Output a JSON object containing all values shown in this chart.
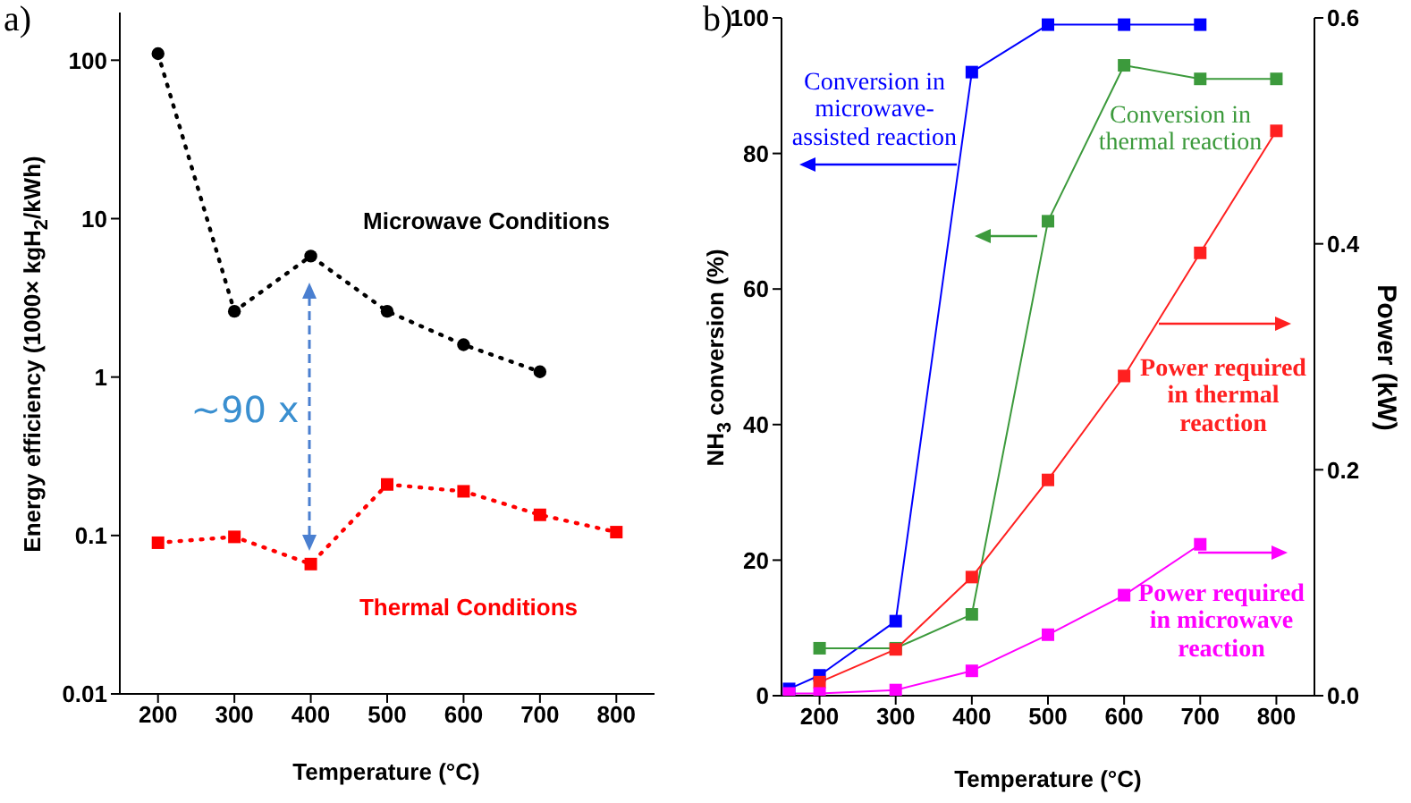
{
  "chart_data": [
    {
      "type": "line",
      "title": "a)",
      "xlabel": "Temperature (°C)",
      "ylabel": "Energy efficiency (1000× kgH$_{2}$/kWh)",
      "log": "y",
      "xlim": [
        150,
        850
      ],
      "xticks": [
        200,
        300,
        400,
        500,
        600,
        700,
        800
      ],
      "ylim": [
        0.01,
        200
      ],
      "yticks": [
        0.01,
        0.1,
        1,
        10,
        100
      ],
      "line_style": "dotted",
      "annotations": [
        "~90 x"
      ],
      "series": [
        {
          "name": "Microwave Conditions",
          "color": "#000000",
          "marker": "circle",
          "x": [
            200,
            300,
            400,
            500,
            600,
            700
          ],
          "values": [
            110,
            2.6,
            5.8,
            2.6,
            1.6,
            1.08
          ]
        },
        {
          "name": "Thermal Conditions",
          "color": "#ff0000",
          "marker": "square",
          "x": [
            200,
            300,
            400,
            500,
            600,
            700,
            800
          ],
          "values": [
            0.09,
            0.098,
            0.066,
            0.21,
            0.19,
            0.135,
            0.105
          ]
        }
      ]
    },
    {
      "type": "line",
      "title": "b)",
      "xlabel": "Temperature (°C)",
      "ylabel": "NH$_{3}$ conversion (%)",
      "y2label": "Power (kW)",
      "xlim": [
        150,
        850
      ],
      "xticks": [
        200,
        300,
        400,
        500,
        600,
        700,
        800
      ],
      "ylim": [
        0,
        100
      ],
      "yticks": [
        0,
        20,
        40,
        60,
        80,
        100
      ],
      "y2lim": [
        0,
        0.6
      ],
      "y2ticks": [
        {
          "value": 0,
          "label": "0.0"
        },
        {
          "value": 0.2,
          "label": "0.2"
        },
        {
          "value": 0.4,
          "label": "0.4"
        },
        {
          "value": 0.6,
          "label": "0.6"
        }
      ],
      "line_style": "solid",
      "marker": "square",
      "legend": "right",
      "series": [
        {
          "name": "Conversion in microwave-assisted reaction",
          "color": "#0000ff",
          "x": [
            160,
            200,
            300,
            400,
            500,
            600,
            700
          ],
          "values": [
            1,
            3,
            11,
            92,
            99,
            99,
            99
          ]
        },
        {
          "name": "Conversion in thermal reaction",
          "color": "#3c9a3c",
          "x": [
            200,
            300,
            400,
            500,
            600,
            700,
            800
          ],
          "values": [
            7,
            7,
            12,
            70,
            93,
            91,
            91
          ]
        },
        {
          "name": "Power required in thermal reaction",
          "color": "#ff2020",
          "axis": "y2",
          "x": [
            200,
            300,
            400,
            500,
            600,
            700,
            800
          ],
          "values": [
            0.012,
            0.041,
            0.105,
            0.191,
            0.283,
            0.392,
            0.5
          ]
        },
        {
          "name": "Power required in microwave reaction",
          "color": "#ff00ff",
          "axis": "y2",
          "x": [
            160,
            200,
            300,
            400,
            500,
            600,
            700
          ],
          "values": [
            0.002,
            0.002,
            0.005,
            0.022,
            0.054,
            0.089,
            0.134
          ]
        }
      ]
    }
  ]
}
